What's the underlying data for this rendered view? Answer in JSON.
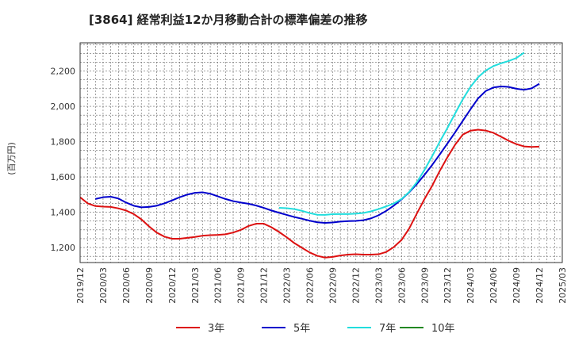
{
  "chart_data": {
    "type": "line",
    "title": "[3864]  経常利益12か月移動合計の標準偏差の推移",
    "ylabel": "(百万円)",
    "xlabel": "",
    "ylim": [
      1115,
      2360
    ],
    "yticks": [
      1200,
      1400,
      1600,
      1800,
      2000,
      2200
    ],
    "ytick_labels": [
      "1,200",
      "1,400",
      "1,600",
      "1,800",
      "2,000",
      "2,200"
    ],
    "xlim": [
      "2019-12",
      "2025-03"
    ],
    "xtick_labels": [
      "2019/12",
      "2020/03",
      "2020/06",
      "2020/09",
      "2020/12",
      "2021/03",
      "2021/06",
      "2021/09",
      "2021/12",
      "2022/03",
      "2022/06",
      "2022/09",
      "2022/12",
      "2023/03",
      "2023/06",
      "2023/09",
      "2023/12",
      "2024/03",
      "2024/06",
      "2024/09",
      "2024/12",
      "2025/03"
    ],
    "grid": true,
    "legend_position": "bottom",
    "series": [
      {
        "name": "3年",
        "color": "#dd1111",
        "start": "2019-12",
        "values": [
          1485,
          1450,
          1435,
          1432,
          1430,
          1422,
          1410,
          1390,
          1360,
          1320,
          1285,
          1262,
          1250,
          1250,
          1255,
          1260,
          1267,
          1270,
          1272,
          1275,
          1285,
          1300,
          1322,
          1335,
          1335,
          1315,
          1288,
          1258,
          1225,
          1198,
          1172,
          1153,
          1143,
          1147,
          1155,
          1160,
          1162,
          1160,
          1160,
          1162,
          1175,
          1203,
          1243,
          1308,
          1393,
          1475,
          1550,
          1635,
          1712,
          1783,
          1840,
          1862,
          1868,
          1863,
          1850,
          1828,
          1805,
          1786,
          1773,
          1770,
          1772
        ]
      },
      {
        "name": "5年",
        "color": "#0000cc",
        "start": "2020-02",
        "values": [
          1475,
          1485,
          1488,
          1478,
          1455,
          1437,
          1428,
          1430,
          1437,
          1450,
          1467,
          1485,
          1500,
          1510,
          1513,
          1505,
          1490,
          1475,
          1463,
          1455,
          1448,
          1438,
          1425,
          1410,
          1397,
          1385,
          1373,
          1363,
          1352,
          1343,
          1340,
          1342,
          1347,
          1350,
          1351,
          1355,
          1365,
          1383,
          1408,
          1438,
          1473,
          1513,
          1560,
          1612,
          1668,
          1728,
          1790,
          1853,
          1918,
          1983,
          2045,
          2087,
          2107,
          2113,
          2110,
          2100,
          2094,
          2102,
          2128
        ]
      },
      {
        "name": "7年",
        "color": "#22dddd",
        "start": "2022-02",
        "values": [
          1425,
          1423,
          1418,
          1408,
          1395,
          1386,
          1385,
          1389,
          1390,
          1390,
          1392,
          1396,
          1405,
          1418,
          1433,
          1450,
          1475,
          1515,
          1570,
          1640,
          1718,
          1800,
          1878,
          1960,
          2040,
          2110,
          2165,
          2203,
          2228,
          2244,
          2257,
          2274,
          2304
        ]
      },
      {
        "name": "10年",
        "color": "#228822",
        "start": "2019-12",
        "values": []
      }
    ]
  }
}
